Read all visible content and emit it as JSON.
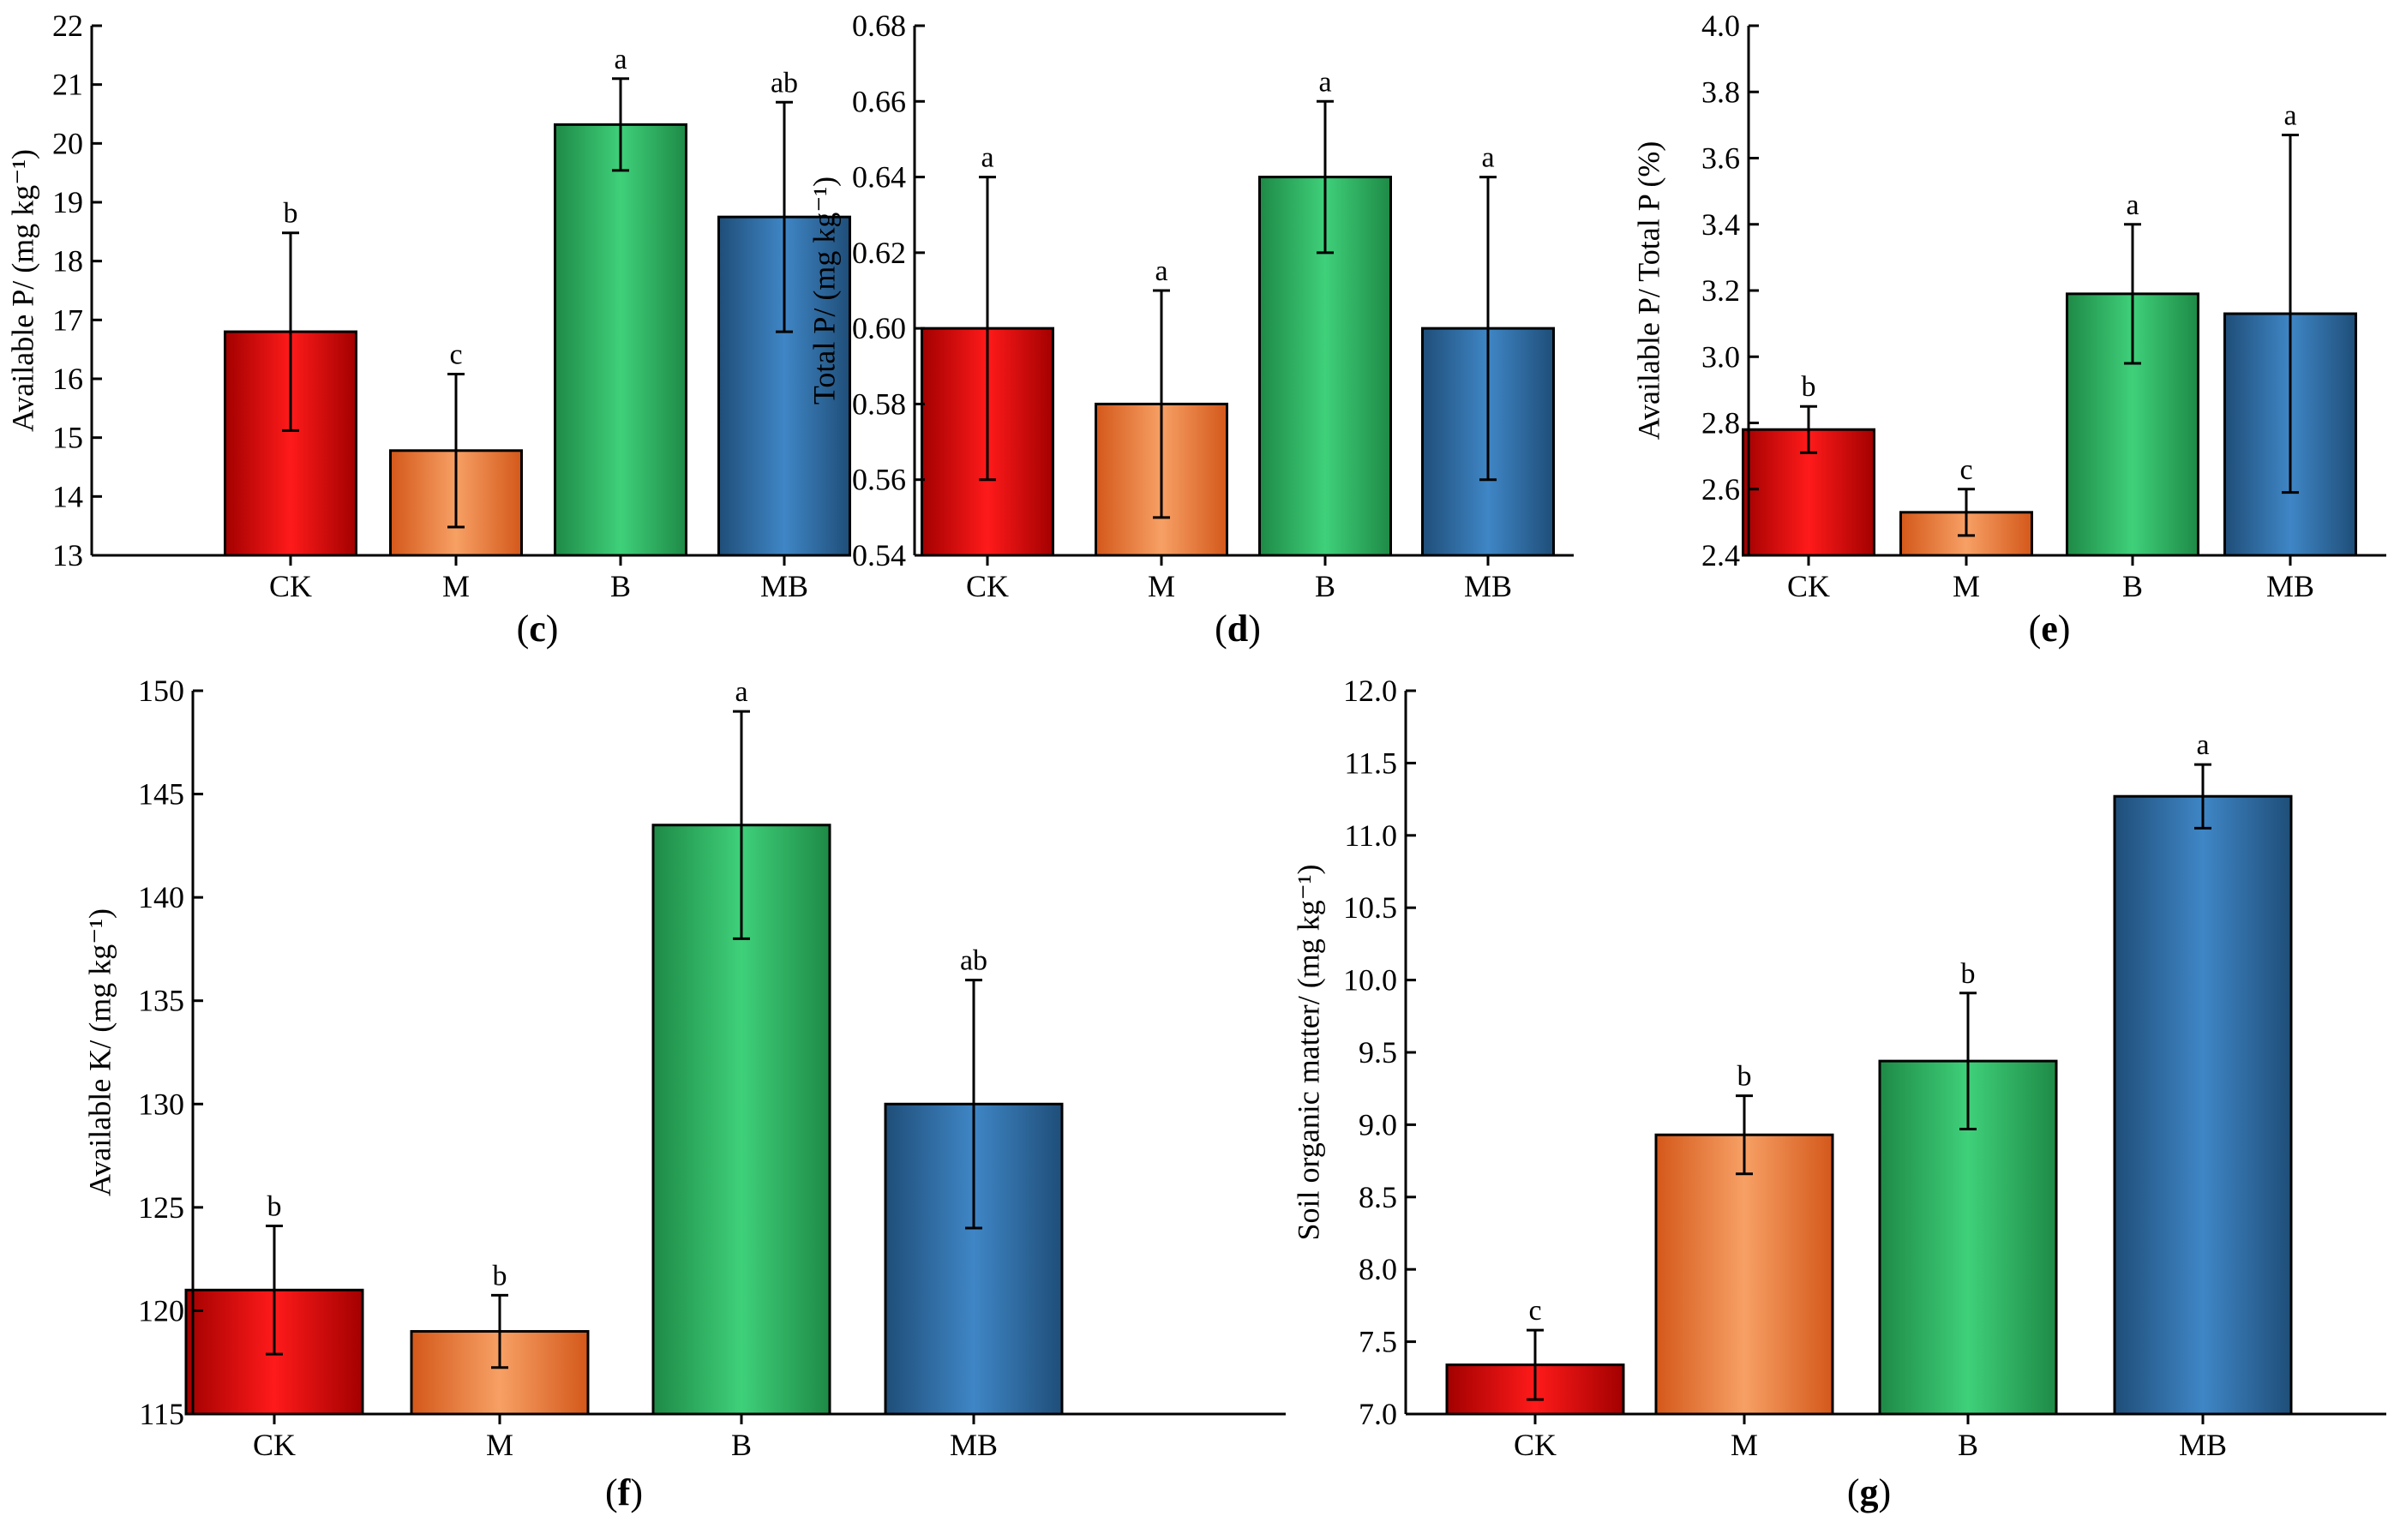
{
  "categories": [
    "CK",
    "M",
    "B",
    "MB"
  ],
  "colors": {
    "CK": {
      "dark": "#a30000",
      "mid": "#ff1a1a"
    },
    "M": {
      "dark": "#d4581a",
      "mid": "#f7a065"
    },
    "B": {
      "dark": "#1e8a46",
      "mid": "#3fd07a"
    },
    "MB": {
      "dark": "#1f4e79",
      "mid": "#3f86c6"
    },
    "axis": "#000000",
    "text": "#000000"
  },
  "chart_data": [
    {
      "type": "bar",
      "panel": "c",
      "title": "",
      "panel_label": "c",
      "ylabel": "Available P/ (mg kg⁻¹)",
      "xlabel": "",
      "categories": [
        "CK",
        "M",
        "B",
        "MB"
      ],
      "values": [
        16.8,
        14.78,
        20.32,
        18.75
      ],
      "errors": [
        1.68,
        1.3,
        0.78,
        1.95
      ],
      "letters": [
        "b",
        "c",
        "a",
        "ab"
      ],
      "ylim": [
        13,
        22
      ],
      "ytick_values": [
        13,
        14,
        15,
        16,
        17,
        18,
        19,
        20,
        21,
        22
      ],
      "ytick_labels": [
        "13",
        "14",
        "15",
        "16",
        "17",
        "18",
        "19",
        "20",
        "21",
        "22"
      ]
    },
    {
      "type": "bar",
      "panel": "d",
      "title": "",
      "panel_label": "d",
      "ylabel": "Total P/ (mg kg⁻¹)",
      "xlabel": "",
      "categories": [
        "CK",
        "M",
        "B",
        "MB"
      ],
      "values": [
        0.6,
        0.58,
        0.64,
        0.6
      ],
      "errors": [
        0.04,
        0.03,
        0.02,
        0.04
      ],
      "letters": [
        "a",
        "a",
        "a",
        "a"
      ],
      "ylim": [
        0.54,
        0.68
      ],
      "ytick_values": [
        0.54,
        0.56,
        0.58,
        0.6,
        0.62,
        0.64,
        0.66,
        0.68
      ],
      "ytick_labels": [
        "0.54",
        "0.56",
        "0.58",
        "0.60",
        "0.62",
        "0.64",
        "0.66",
        "0.68"
      ]
    },
    {
      "type": "bar",
      "panel": "e",
      "title": "",
      "panel_label": "e",
      "ylabel": "Available P/ Total P (%)",
      "xlabel": "",
      "categories": [
        "CK",
        "M",
        "B",
        "MB"
      ],
      "values": [
        2.78,
        2.53,
        3.19,
        3.13
      ],
      "errors": [
        0.07,
        0.07,
        0.21,
        0.54
      ],
      "letters": [
        "b",
        "c",
        "a",
        "a"
      ],
      "ylim": [
        2.4,
        4.0
      ],
      "ytick_values": [
        2.4,
        2.6,
        2.8,
        3.0,
        3.2,
        3.4,
        3.6,
        3.8,
        4.0
      ],
      "ytick_labels": [
        "2.4",
        "2.6",
        "2.8",
        "3.0",
        "3.2",
        "3.4",
        "3.6",
        "3.8",
        "4.0"
      ]
    },
    {
      "type": "bar",
      "panel": "f",
      "title": "",
      "panel_label": "f",
      "ylabel": "Available K/ (mg kg⁻¹)",
      "xlabel": "",
      "categories": [
        "CK",
        "M",
        "B",
        "MB"
      ],
      "values": [
        121.0,
        119.0,
        143.5,
        130.0
      ],
      "errors": [
        3.1,
        1.75,
        5.5,
        6.0
      ],
      "letters": [
        "b",
        "b",
        "a",
        "ab"
      ],
      "ylim": [
        115,
        150
      ],
      "ytick_values": [
        115,
        120,
        125,
        130,
        135,
        140,
        145,
        150
      ],
      "ytick_labels": [
        "115",
        "120",
        "125",
        "130",
        "135",
        "140",
        "145",
        "150"
      ]
    },
    {
      "type": "bar",
      "panel": "g",
      "title": "",
      "panel_label": "g",
      "ylabel": "Soil organic matter/ (mg kg⁻¹)",
      "xlabel": "",
      "categories": [
        "CK",
        "M",
        "B",
        "MB"
      ],
      "values": [
        7.34,
        8.93,
        9.44,
        11.27
      ],
      "errors": [
        0.24,
        0.27,
        0.47,
        0.22
      ],
      "letters": [
        "c",
        "b",
        "b",
        "a"
      ],
      "ylim": [
        7.0,
        12.0
      ],
      "ytick_values": [
        7.0,
        7.5,
        8.0,
        8.5,
        9.0,
        9.5,
        10.0,
        10.5,
        11.0,
        11.5,
        12.0
      ],
      "ytick_labels": [
        "7.0",
        "7.5",
        "8.0",
        "8.5",
        "9.0",
        "9.5",
        "10.0",
        "10.5",
        "11.0",
        "11.5",
        "12.0"
      ]
    }
  ]
}
